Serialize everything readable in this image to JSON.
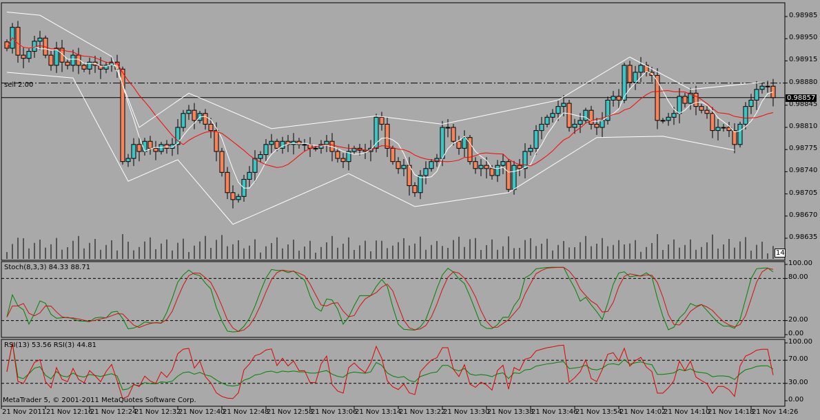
{
  "symbol_info": {
    "sell_label": "sell 2.00",
    "current_price": "0.98857",
    "time_box": "14:"
  },
  "price_axis": [
    "0.98985",
    "0.98950",
    "0.98915",
    "0.98880",
    "0.98845",
    "0.98810",
    "0.98775",
    "0.98740",
    "0.98705",
    "0.98670",
    "0.98635"
  ],
  "stoch": {
    "title": "Stoch(8,3,3) 84.33 88.71",
    "levels": [
      "100.00",
      "80.00",
      "20.00",
      "0.00"
    ]
  },
  "rsi": {
    "title": "RSI(13) 53.56 RSI(3) 44.81",
    "levels": [
      "100.00",
      "70.00",
      "30.00",
      "0.00"
    ]
  },
  "copyright": "MetaTrader 5, © 2001-2011 MetaQuotes Software Corp.",
  "time_axis": [
    "21 Nov 2011",
    "21 Nov 12:16",
    "21 Nov 12:24",
    "21 Nov 12:32",
    "21 Nov 12:40",
    "21 Nov 12:48",
    "21 Nov 12:58",
    "21 Nov 13:06",
    "21 Nov 13:14",
    "21 Nov 13:22",
    "21 Nov 13:30",
    "21 Nov 13:38",
    "21 Nov 13:46",
    "21 Nov 13:54",
    "21 Nov 14:02",
    "21 Nov 14:10",
    "21 Nov 14:18",
    "21 Nov 14:26"
  ],
  "colors": {
    "bull": "#3fc3c3",
    "bear": "#f7855a",
    "ma_fast": "#ffffff",
    "ma_slow": "#ff0000",
    "stoch_main": "#008000",
    "stoch_signal": "#d01010"
  },
  "chart_data": {
    "type": "candlestick",
    "y_range": [
      0.98635,
      0.98985
    ],
    "sell_level": 0.9888,
    "current_level": 0.98857,
    "closes": [
      0.98935,
      0.98968,
      0.98924,
      0.98919,
      0.9893,
      0.98946,
      0.98951,
      0.98924,
      0.98908,
      0.98935,
      0.98913,
      0.98908,
      0.98924,
      0.98908,
      0.98902,
      0.98913,
      0.98908,
      0.98902,
      0.98908,
      0.98913,
      0.98902,
      0.98756,
      0.98761,
      0.98783,
      0.98772,
      0.98788,
      0.98777,
      0.98772,
      0.98783,
      0.98777,
      0.98783,
      0.9881,
      0.98832,
      0.98837,
      0.98821,
      0.98832,
      0.98815,
      0.98805,
      0.98772,
      0.98739,
      0.98707,
      0.98696,
      0.98701,
      0.98728,
      0.98739,
      0.98761,
      0.98767,
      0.98783,
      0.98788,
      0.98777,
      0.98788,
      0.98783,
      0.98788,
      0.98783,
      0.98783,
      0.98777,
      0.98777,
      0.98783,
      0.98788,
      0.98772,
      0.98761,
      0.98756,
      0.98772,
      0.98777,
      0.98774,
      0.98772,
      0.98777,
      0.98826,
      0.98815,
      0.98777,
      0.98756,
      0.98745,
      0.9875,
      0.98718,
      0.98707,
      0.98734,
      0.98745,
      0.98756,
      0.98761,
      0.9881,
      0.9881,
      0.98788,
      0.98777,
      0.98794,
      0.98756,
      0.98745,
      0.9875,
      0.98745,
      0.98734,
      0.9875,
      0.98756,
      0.98712,
      0.9875,
      0.98745,
      0.98772,
      0.98777,
      0.98805,
      0.98815,
      0.98826,
      0.98832,
      0.98843,
      0.98848,
      0.9881,
      0.98815,
      0.98821,
      0.98837,
      0.98815,
      0.9881,
      0.98821,
      0.98853,
      0.98859,
      0.98853,
      0.98908,
      0.98881,
      0.98897,
      0.98908,
      0.98897,
      0.98892,
      0.98821,
      0.98821,
      0.98826,
      0.98832,
      0.98859,
      0.98848,
      0.98864,
      0.98843,
      0.98837,
      0.98832,
      0.98805,
      0.9881,
      0.9881,
      0.98805,
      0.98783,
      0.98815,
      0.98843,
      0.98853,
      0.9887,
      0.98875,
      0.98875,
      0.98857
    ],
    "zigzag_upper": [
      [
        0,
        0.98992
      ],
      [
        6,
        0.98987
      ],
      [
        19,
        0.98922
      ],
      [
        24,
        0.9881
      ],
      [
        33,
        0.98864
      ],
      [
        48,
        0.98808
      ],
      [
        67,
        0.98828
      ],
      [
        79,
        0.98815
      ],
      [
        100,
        0.98853
      ],
      [
        113,
        0.98921
      ],
      [
        124,
        0.9887
      ],
      [
        137,
        0.98881
      ]
    ],
    "zigzag_lower": [
      [
        0,
        0.98897
      ],
      [
        12,
        0.98888
      ],
      [
        22,
        0.98725
      ],
      [
        31,
        0.98759
      ],
      [
        41,
        0.98657
      ],
      [
        62,
        0.98737
      ],
      [
        74,
        0.98685
      ],
      [
        91,
        0.98707
      ],
      [
        107,
        0.98794
      ],
      [
        119,
        0.98796
      ],
      [
        132,
        0.98774
      ]
    ]
  }
}
